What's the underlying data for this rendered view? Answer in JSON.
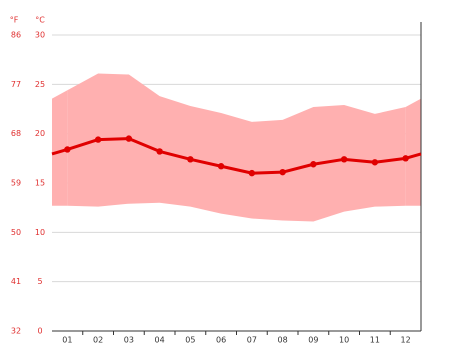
{
  "chart_data": {
    "type": "line",
    "y_label": "°C",
    "y2_label": "°F",
    "categories": [
      "01",
      "02",
      "03",
      "04",
      "05",
      "06",
      "07",
      "08",
      "09",
      "10",
      "11",
      "12"
    ],
    "band": {
      "color": "#ffb0b0",
      "max": [
        24.4,
        26.1,
        26.0,
        23.8,
        22.8,
        22.1,
        21.2,
        21.4,
        22.7,
        22.9,
        22.0,
        22.7
      ],
      "min": [
        12.7,
        12.6,
        12.9,
        13.0,
        12.6,
        11.9,
        11.4,
        11.2,
        11.1,
        12.1,
        12.6,
        12.7
      ]
    },
    "series": [
      {
        "color": "#e00000",
        "values": [
          18.4,
          19.4,
          19.5,
          18.2,
          17.4,
          16.7,
          16.0,
          16.1,
          16.9,
          17.4,
          17.1,
          17.5
        ]
      }
    ],
    "ylim": [
      0,
      30
    ],
    "yticks": [
      0,
      5,
      10,
      15,
      20,
      25,
      30
    ],
    "y2lim": [
      32,
      86
    ],
    "y2ticks": [
      32,
      41,
      50,
      59,
      68,
      77,
      86
    ],
    "grid": true,
    "label_color": "#e03030"
  }
}
